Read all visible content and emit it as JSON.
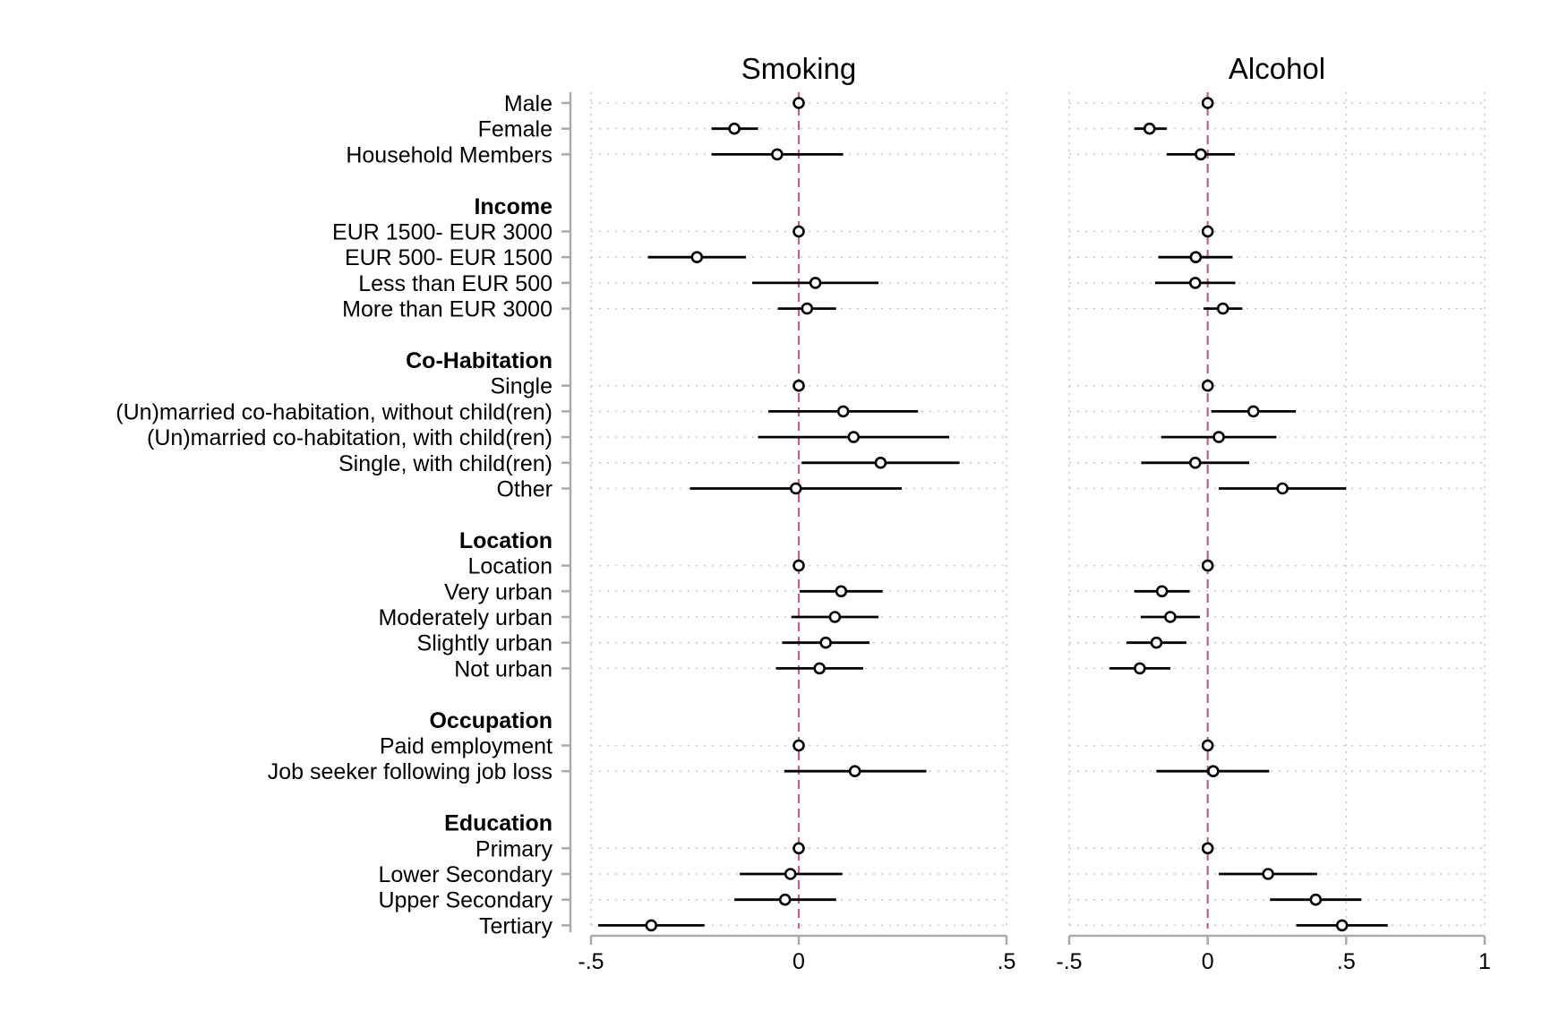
{
  "chart_data": {
    "type": "scatter",
    "subtype": "coefficient-plot",
    "row_labels": [
      {
        "label": "Male",
        "heading": false
      },
      {
        "label": "Female",
        "heading": false
      },
      {
        "label": "Household Members",
        "heading": false
      },
      {
        "label": "",
        "heading": false
      },
      {
        "label": "Income",
        "heading": true
      },
      {
        "label": "EUR 1500- EUR 3000",
        "heading": false
      },
      {
        "label": "EUR 500- EUR 1500",
        "heading": false
      },
      {
        "label": "Less than EUR 500",
        "heading": false
      },
      {
        "label": "More than EUR 3000",
        "heading": false
      },
      {
        "label": "",
        "heading": false
      },
      {
        "label": "Co-Habitation",
        "heading": true
      },
      {
        "label": "Single",
        "heading": false
      },
      {
        "label": "(Un)married co-habitation, without child(ren)",
        "heading": false
      },
      {
        "label": "(Un)married co-habitation, with child(ren)",
        "heading": false
      },
      {
        "label": "Single, with child(ren)",
        "heading": false
      },
      {
        "label": "Other",
        "heading": false
      },
      {
        "label": "",
        "heading": false
      },
      {
        "label": "Location",
        "heading": true
      },
      {
        "label": "Location",
        "heading": false
      },
      {
        "label": "Very urban",
        "heading": false
      },
      {
        "label": "Moderately urban",
        "heading": false
      },
      {
        "label": "Slightly urban",
        "heading": false
      },
      {
        "label": "Not urban",
        "heading": false
      },
      {
        "label": "",
        "heading": false
      },
      {
        "label": "Occupation",
        "heading": true
      },
      {
        "label": "Paid employment",
        "heading": false
      },
      {
        "label": "Job seeker following job loss",
        "heading": false
      },
      {
        "label": "",
        "heading": false
      },
      {
        "label": "Education",
        "heading": true
      },
      {
        "label": "Primary",
        "heading": false
      },
      {
        "label": "Lower Secondary",
        "heading": false
      },
      {
        "label": "Upper Secondary",
        "heading": false
      },
      {
        "label": "Tertiary",
        "heading": false
      }
    ],
    "panels": [
      {
        "title": "Smoking",
        "xlim": [
          -0.5,
          0.5
        ],
        "xticks": [
          -0.5,
          0,
          0.5
        ],
        "xtick_labels": [
          "-.5",
          "0",
          ".5"
        ],
        "reference_line": 0,
        "points": [
          {
            "row": 0,
            "est": 0,
            "lo": 0,
            "hi": 0
          },
          {
            "row": 1,
            "est": -0.155,
            "lo": -0.21,
            "hi": -0.098
          },
          {
            "row": 2,
            "est": -0.052,
            "lo": -0.21,
            "hi": 0.107
          },
          {
            "row": 5,
            "est": 0,
            "lo": 0,
            "hi": 0
          },
          {
            "row": 6,
            "est": -0.245,
            "lo": -0.363,
            "hi": -0.127
          },
          {
            "row": 7,
            "est": 0.04,
            "lo": -0.112,
            "hi": 0.192
          },
          {
            "row": 8,
            "est": 0.02,
            "lo": -0.05,
            "hi": 0.09
          },
          {
            "row": 11,
            "est": 0,
            "lo": 0,
            "hi": 0
          },
          {
            "row": 12,
            "est": 0.107,
            "lo": -0.073,
            "hi": 0.287
          },
          {
            "row": 13,
            "est": 0.132,
            "lo": -0.098,
            "hi": 0.362
          },
          {
            "row": 14,
            "est": 0.197,
            "lo": 0.007,
            "hi": 0.387
          },
          {
            "row": 15,
            "est": -0.007,
            "lo": -0.262,
            "hi": 0.248
          },
          {
            "row": 18,
            "est": 0,
            "lo": 0,
            "hi": 0
          },
          {
            "row": 19,
            "est": 0.102,
            "lo": 0.002,
            "hi": 0.202
          },
          {
            "row": 20,
            "est": 0.087,
            "lo": -0.018,
            "hi": 0.192
          },
          {
            "row": 21,
            "est": 0.065,
            "lo": -0.04,
            "hi": 0.17
          },
          {
            "row": 22,
            "est": 0.05,
            "lo": -0.055,
            "hi": 0.155
          },
          {
            "row": 25,
            "est": 0,
            "lo": 0,
            "hi": 0
          },
          {
            "row": 26,
            "est": 0.135,
            "lo": -0.035,
            "hi": 0.307
          },
          {
            "row": 29,
            "est": 0,
            "lo": 0,
            "hi": 0
          },
          {
            "row": 30,
            "est": -0.02,
            "lo": -0.142,
            "hi": 0.105
          },
          {
            "row": 31,
            "est": -0.033,
            "lo": -0.155,
            "hi": 0.09
          },
          {
            "row": 32,
            "est": -0.355,
            "lo": -0.483,
            "hi": -0.227
          }
        ]
      },
      {
        "title": "Alcohol",
        "xlim": [
          -0.5,
          1
        ],
        "xticks": [
          -0.5,
          0,
          0.5,
          1
        ],
        "xtick_labels": [
          "-.5",
          "0",
          ".5",
          "1"
        ],
        "reference_line": 0,
        "points": [
          {
            "row": 0,
            "est": 0,
            "lo": 0,
            "hi": 0
          },
          {
            "row": 1,
            "est": -0.21,
            "lo": -0.265,
            "hi": -0.148
          },
          {
            "row": 2,
            "est": -0.025,
            "lo": -0.148,
            "hi": 0.098
          },
          {
            "row": 5,
            "est": 0,
            "lo": 0,
            "hi": 0
          },
          {
            "row": 6,
            "est": -0.043,
            "lo": -0.178,
            "hi": 0.09
          },
          {
            "row": 7,
            "est": -0.045,
            "lo": -0.19,
            "hi": 0.1
          },
          {
            "row": 8,
            "est": 0.055,
            "lo": -0.015,
            "hi": 0.125
          },
          {
            "row": 11,
            "est": 0,
            "lo": 0,
            "hi": 0
          },
          {
            "row": 12,
            "est": 0.165,
            "lo": 0.013,
            "hi": 0.318
          },
          {
            "row": 13,
            "est": 0.04,
            "lo": -0.168,
            "hi": 0.248
          },
          {
            "row": 14,
            "est": -0.045,
            "lo": -0.24,
            "hi": 0.15
          },
          {
            "row": 15,
            "est": 0.27,
            "lo": 0.04,
            "hi": 0.5
          },
          {
            "row": 18,
            "est": 0,
            "lo": 0,
            "hi": 0
          },
          {
            "row": 19,
            "est": -0.165,
            "lo": -0.265,
            "hi": -0.065
          },
          {
            "row": 20,
            "est": -0.135,
            "lo": -0.242,
            "hi": -0.028
          },
          {
            "row": 21,
            "est": -0.185,
            "lo": -0.293,
            "hi": -0.077
          },
          {
            "row": 22,
            "est": -0.245,
            "lo": -0.355,
            "hi": -0.135
          },
          {
            "row": 25,
            "est": 0,
            "lo": 0,
            "hi": 0
          },
          {
            "row": 26,
            "est": 0.02,
            "lo": -0.185,
            "hi": 0.222
          },
          {
            "row": 29,
            "est": 0,
            "lo": 0,
            "hi": 0
          },
          {
            "row": 30,
            "est": 0.218,
            "lo": 0.04,
            "hi": 0.395
          },
          {
            "row": 31,
            "est": 0.39,
            "lo": 0.225,
            "hi": 0.555
          },
          {
            "row": 32,
            "est": 0.485,
            "lo": 0.32,
            "hi": 0.65
          }
        ]
      }
    ],
    "grid": true,
    "reference_line_color": "#c0608c",
    "marker": "hollow-circle",
    "colors": {
      "marks": "#000000",
      "axis": "#aaaaaa",
      "grid": "#c8c8c8"
    }
  }
}
